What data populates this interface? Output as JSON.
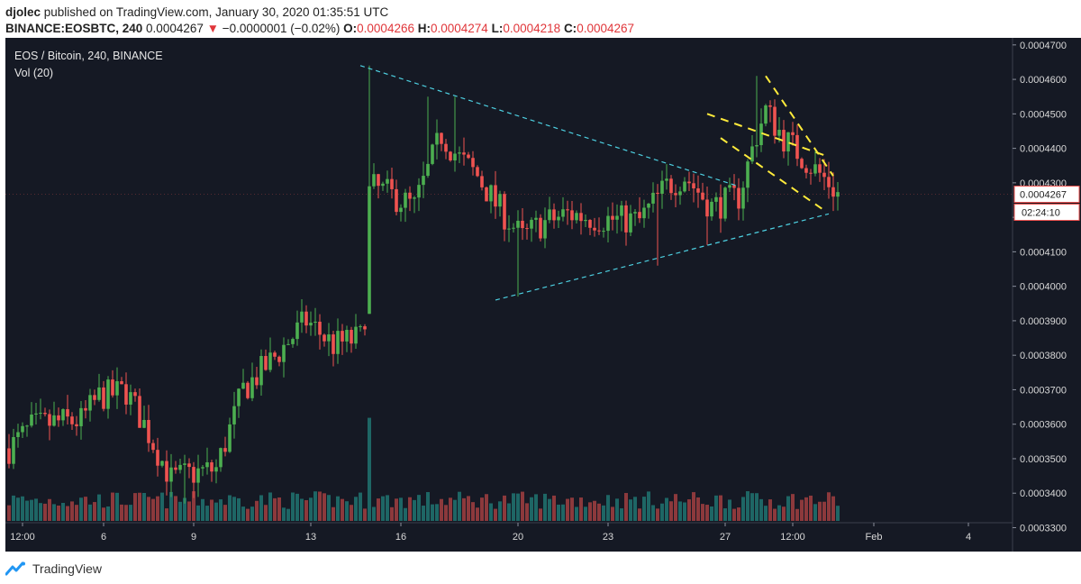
{
  "header": {
    "author": "djolec",
    "published": "published on TradingView.com, January 30, 2020 01:35:51 UTC",
    "symbol": "BINANCE:EOSBTC, 240",
    "last": "0.0004267",
    "arrow": "▼",
    "change": "−0.0000001 (−0.02%)",
    "o_label": "O:",
    "o_value": "0.0004266",
    "h_label": "H:",
    "h_value": "0.0004274",
    "l_label": "L:",
    "l_value": "0.0004218",
    "c_label": "C:",
    "c_value": "0.0004267"
  },
  "footer": {
    "brand": "TradingView"
  },
  "colors": {
    "background": "#151924",
    "up": "#26a69a",
    "down": "#ef5350",
    "candle_up": "#4caf50",
    "trend_line": "#4dd0e1",
    "channel_line": "#ffeb3b"
  },
  "chart_data": {
    "type": "candlestick",
    "title": "EOS / Bitcoin, 240, BINANCE",
    "volume_label": "Vol (20)",
    "y_ticks": [
      "0.0004700",
      "0.0004600",
      "0.0004500",
      "0.0004400",
      "0.0004300",
      "0.0004200",
      "0.0004100",
      "0.0004000",
      "0.0003900",
      "0.0003800",
      "0.0003700",
      "0.0003600",
      "0.0003500",
      "0.0003400",
      "0.0003300"
    ],
    "ylim": [
      0.000333,
      0.000471
    ],
    "x_ticks": [
      "12:00",
      "6",
      "9",
      "13",
      "16",
      "20",
      "23",
      "27",
      "12:00",
      "Feb",
      "4"
    ],
    "last_price_label": "0.0004267",
    "countdown_label": "02:24:10",
    "keyframes": [
      {
        "bar": 0,
        "price": 0.000353
      },
      {
        "bar": 5,
        "price": 0.000359
      },
      {
        "bar": 10,
        "price": 0.0003605
      },
      {
        "bar": 16,
        "price": 0.000361
      },
      {
        "bar": 20,
        "price": 0.000368
      },
      {
        "bar": 26,
        "price": 0.0003695
      },
      {
        "bar": 30,
        "price": 0.00036
      },
      {
        "bar": 36,
        "price": 0.000344
      },
      {
        "bar": 40,
        "price": 0.0003455
      },
      {
        "bar": 46,
        "price": 0.000347
      },
      {
        "bar": 52,
        "price": 0.00037
      },
      {
        "bar": 58,
        "price": 0.000378
      },
      {
        "bar": 66,
        "price": 0.00039
      },
      {
        "bar": 72,
        "price": 0.000383
      },
      {
        "bar": 78,
        "price": 0.000385
      },
      {
        "bar": 79,
        "price": 0.000392
      },
      {
        "bar": 80,
        "price": 0.000429
      },
      {
        "bar": 84,
        "price": 0.000427
      },
      {
        "bar": 90,
        "price": 0.000423
      },
      {
        "bar": 96,
        "price": 0.000444
      },
      {
        "bar": 100,
        "price": 0.000437
      },
      {
        "bar": 104,
        "price": 0.000432
      },
      {
        "bar": 108,
        "price": 0.000424
      },
      {
        "bar": 114,
        "price": 0.000414
      },
      {
        "bar": 118,
        "price": 0.000418
      },
      {
        "bar": 124,
        "price": 0.000421
      },
      {
        "bar": 132,
        "price": 0.0004195
      },
      {
        "bar": 140,
        "price": 0.000419
      },
      {
        "bar": 146,
        "price": 0.000429
      },
      {
        "bar": 150,
        "price": 0.000432
      },
      {
        "bar": 156,
        "price": 0.000423
      },
      {
        "bar": 162,
        "price": 0.000426
      },
      {
        "bar": 166,
        "price": 0.000444
      },
      {
        "bar": 168,
        "price": 0.000451
      },
      {
        "bar": 172,
        "price": 0.000443
      },
      {
        "bar": 178,
        "price": 0.000435
      },
      {
        "bar": 182,
        "price": 0.00043
      },
      {
        "bar": 184,
        "price": 0.0004267
      }
    ],
    "spikes": [
      {
        "bar": 80,
        "high": 0.000464,
        "low": 0.000392,
        "open": 0.000392,
        "close": 0.000429,
        "volume": 5.2
      },
      {
        "bar": 93,
        "high": 0.000455
      },
      {
        "bar": 99,
        "high": 0.000455
      },
      {
        "bar": 113,
        "low": 0.000397
      },
      {
        "bar": 144,
        "low": 0.000406
      },
      {
        "bar": 155,
        "low": 0.000412
      },
      {
        "bar": 166,
        "high": 0.000461,
        "volume": 1.4
      },
      {
        "bar": 39,
        "low": 0.000337
      },
      {
        "bar": 26,
        "high": 0.000375
      }
    ],
    "annotations": {
      "triangle_top": [
        [
          78,
          0.000464
        ],
        [
          162,
          0.000429
        ]
      ],
      "triangle_bottom": [
        [
          108,
          0.000396
        ],
        [
          182,
          0.000421
        ]
      ],
      "channel_upper": [
        [
          155,
          0.00045
        ],
        [
          181,
          0.000438
        ]
      ],
      "channel_lower": [
        [
          155,
          0.000438
        ],
        [
          181,
          0.000421
        ]
      ],
      "channel_upper2": [
        [
          168,
          0.000461
        ],
        [
          183,
          0.000432
        ]
      ],
      "channel_lower2": [
        [
          158,
          0.000443
        ],
        [
          181,
          0.000422
        ]
      ]
    }
  }
}
